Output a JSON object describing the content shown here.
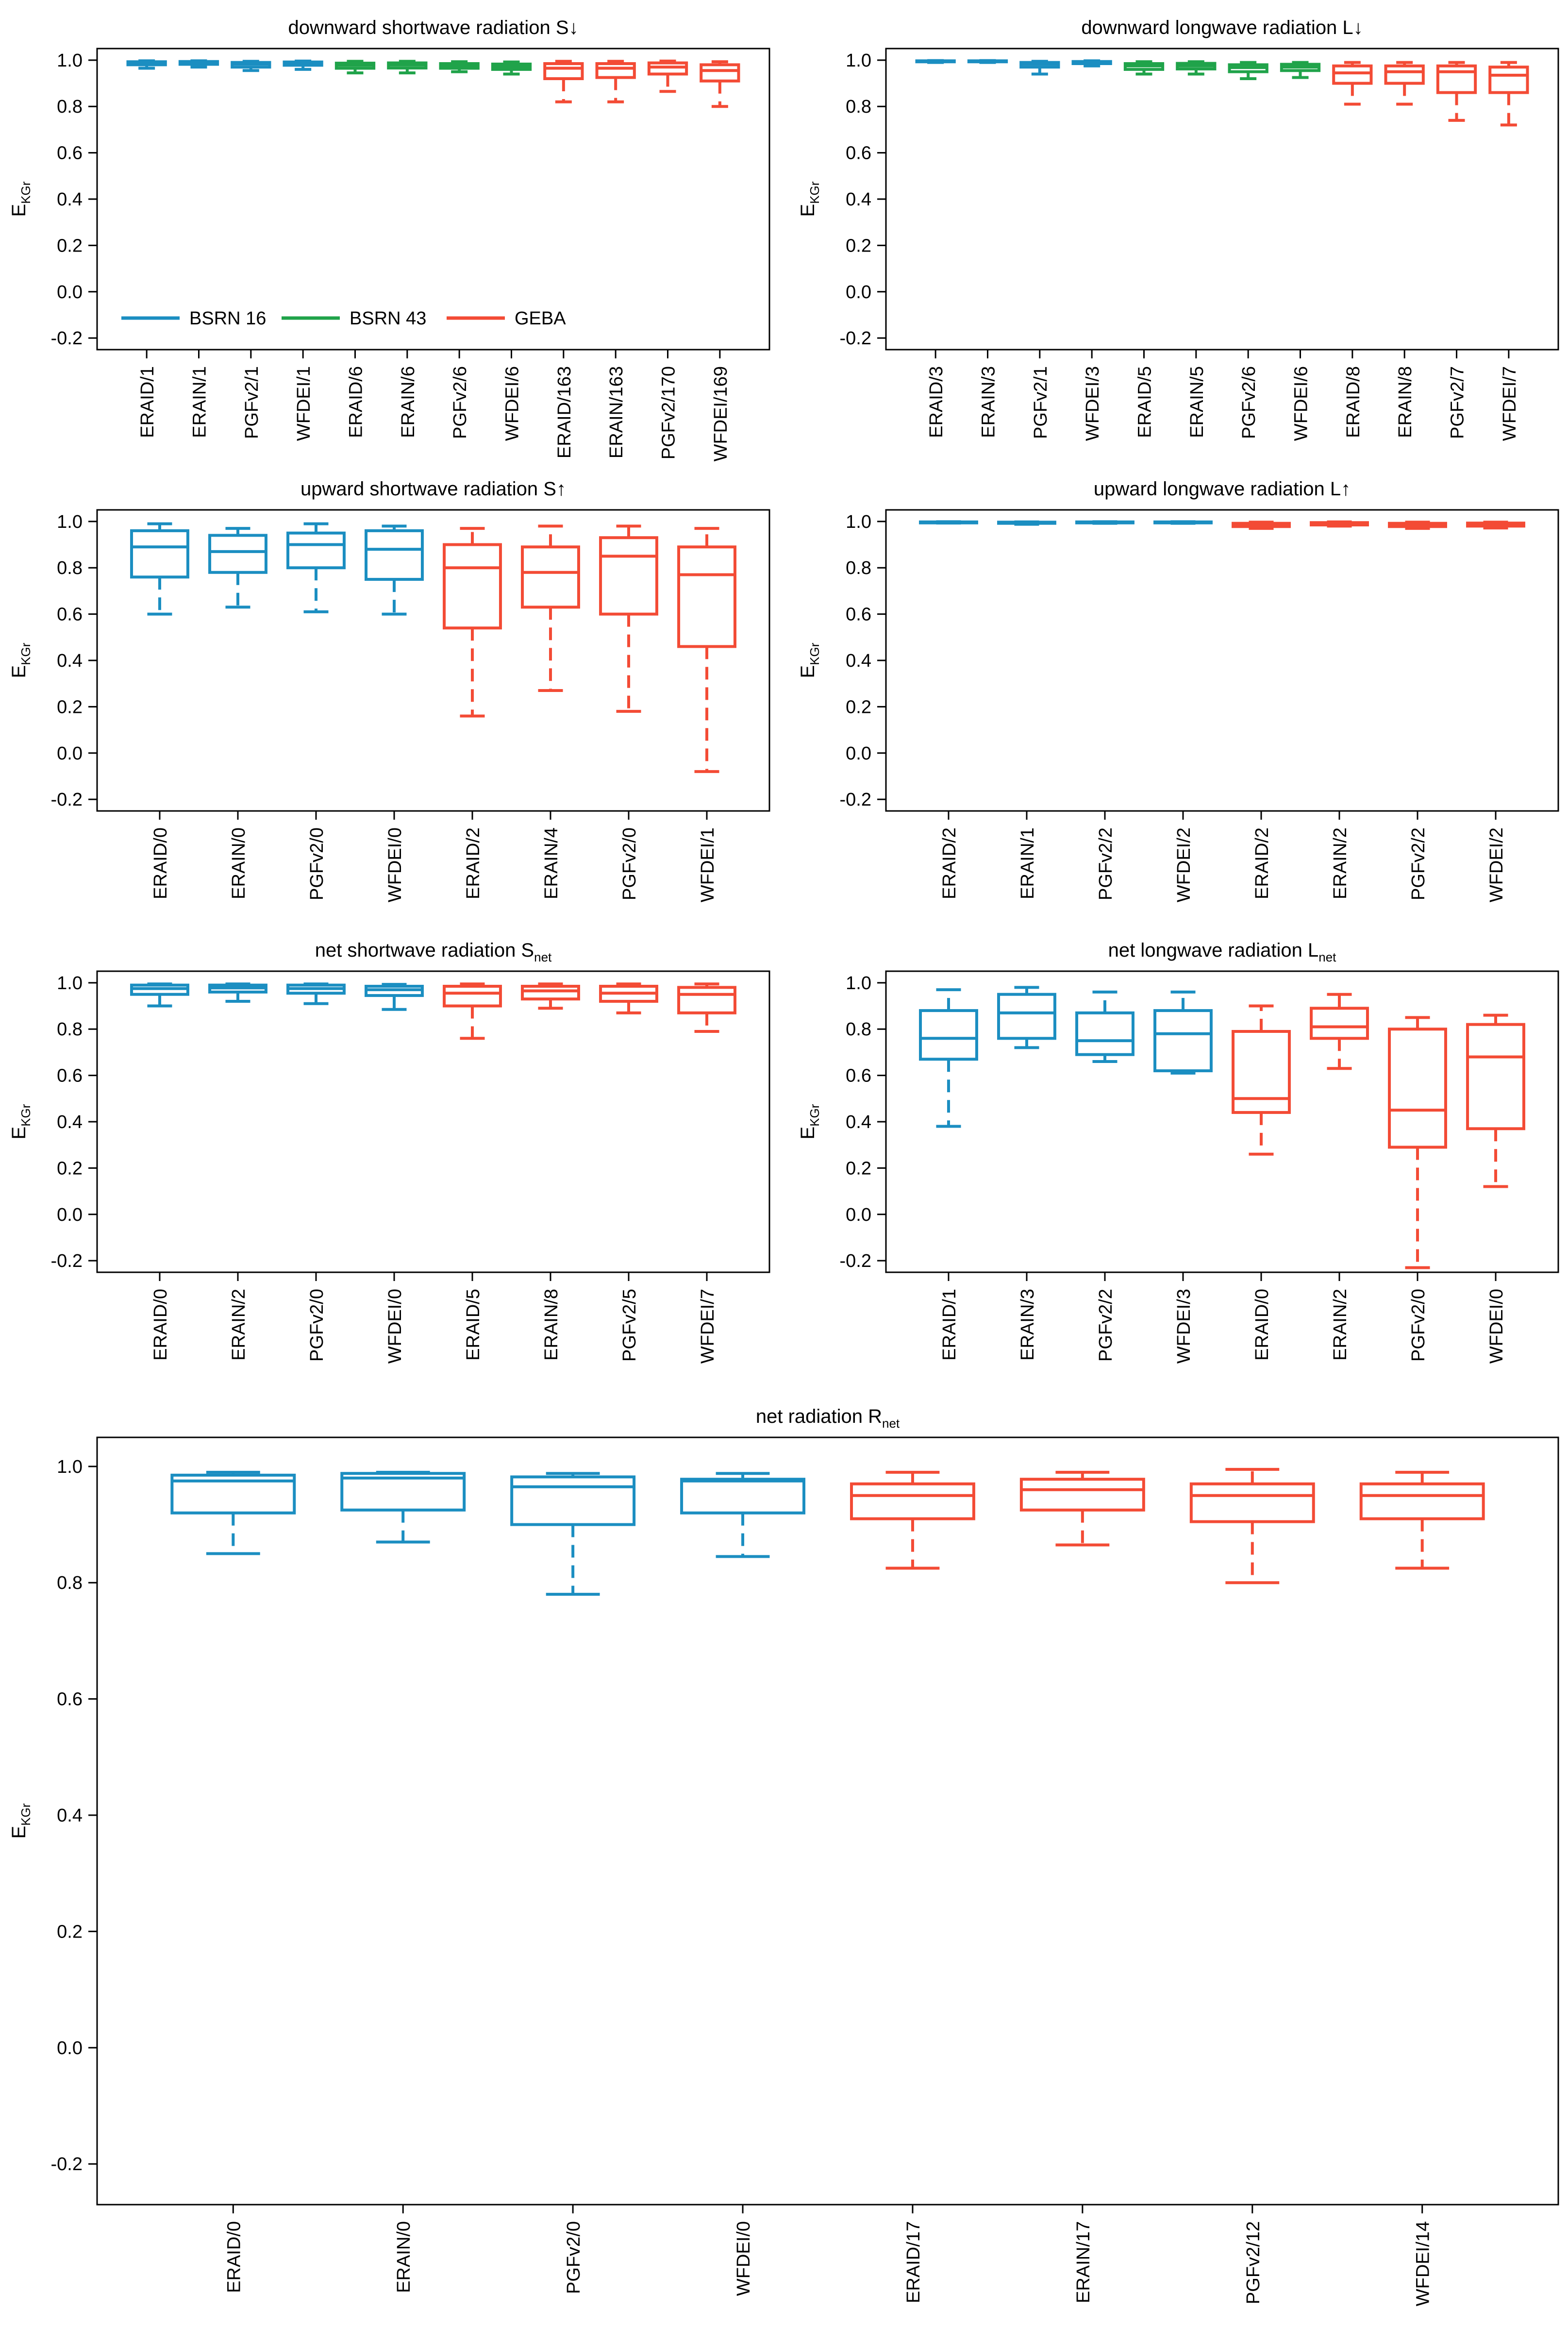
{
  "colors": {
    "blue": "#1b8ec1",
    "green": "#20a34a",
    "red": "#f34b35"
  },
  "ylabel": "E",
  "ylabel_sub": "KGr",
  "legend": [
    {
      "label": "BSRN 16",
      "color": "#1b8ec1"
    },
    {
      "label": "BSRN 43",
      "color": "#20a34a"
    },
    {
      "label": "GEBA",
      "color": "#f34b35"
    }
  ],
  "chart_data": [
    {
      "type": "box",
      "title": "downward shortwave radiation S↓",
      "ylim": [
        -0.25,
        1.05
      ],
      "yticks": [
        "1.0",
        "0.8",
        "0.6",
        "0.4",
        "0.2",
        "0.0",
        "-0.2"
      ],
      "categories": [
        "ERAID/1",
        "ERAIN/1",
        "PGFv2/1",
        "WFDEI/1",
        "ERAID/6",
        "ERAIN/6",
        "PGFv2/6",
        "WFDEI/6",
        "ERAID/163",
        "ERAIN/163",
        "PGFv2/170",
        "WFDEI/169"
      ],
      "groups": [
        "blue",
        "blue",
        "blue",
        "blue",
        "green",
        "green",
        "green",
        "green",
        "red",
        "red",
        "red",
        "red"
      ],
      "boxes": [
        {
          "min": 0.965,
          "q1": 0.98,
          "median": 0.988,
          "q3": 0.993,
          "max": 0.997
        },
        {
          "min": 0.97,
          "q1": 0.982,
          "median": 0.989,
          "q3": 0.994,
          "max": 0.997
        },
        {
          "min": 0.955,
          "q1": 0.97,
          "median": 0.983,
          "q3": 0.99,
          "max": 0.995
        },
        {
          "min": 0.96,
          "q1": 0.978,
          "median": 0.986,
          "q3": 0.992,
          "max": 0.996
        },
        {
          "min": 0.945,
          "q1": 0.965,
          "median": 0.978,
          "q3": 0.987,
          "max": 0.995
        },
        {
          "min": 0.945,
          "q1": 0.966,
          "median": 0.979,
          "q3": 0.988,
          "max": 0.995
        },
        {
          "min": 0.95,
          "q1": 0.965,
          "median": 0.975,
          "q3": 0.985,
          "max": 0.993
        },
        {
          "min": 0.94,
          "q1": 0.96,
          "median": 0.972,
          "q3": 0.983,
          "max": 0.992
        },
        {
          "min": 0.82,
          "q1": 0.92,
          "median": 0.965,
          "q3": 0.985,
          "max": 0.995
        },
        {
          "min": 0.82,
          "q1": 0.925,
          "median": 0.965,
          "q3": 0.985,
          "max": 0.995
        },
        {
          "min": 0.865,
          "q1": 0.94,
          "median": 0.97,
          "q3": 0.988,
          "max": 0.996
        },
        {
          "min": 0.8,
          "q1": 0.91,
          "median": 0.955,
          "q3": 0.98,
          "max": 0.993
        }
      ]
    },
    {
      "type": "box",
      "title": "downward longwave radiation L↓",
      "ylim": [
        -0.25,
        1.05
      ],
      "yticks": [
        "1.0",
        "0.8",
        "0.6",
        "0.4",
        "0.2",
        "0.0",
        "-0.2"
      ],
      "categories": [
        "ERAID/3",
        "ERAIN/3",
        "PGFv2/1",
        "WFDEI/3",
        "ERAID/5",
        "ERAIN/5",
        "PGFv2/6",
        "WFDEI/6",
        "ERAID/8",
        "ERAIN/8",
        "PGFv2/7",
        "WFDEI/7"
      ],
      "groups": [
        "blue",
        "blue",
        "blue",
        "blue",
        "green",
        "green",
        "green",
        "green",
        "red",
        "red",
        "red",
        "red"
      ],
      "boxes": [
        {
          "min": 0.99,
          "q1": 0.993,
          "median": 0.995,
          "q3": 0.997,
          "max": 0.998
        },
        {
          "min": 0.99,
          "q1": 0.993,
          "median": 0.995,
          "q3": 0.997,
          "max": 0.998
        },
        {
          "min": 0.94,
          "q1": 0.97,
          "median": 0.982,
          "q3": 0.99,
          "max": 0.995
        },
        {
          "min": 0.975,
          "q1": 0.985,
          "median": 0.99,
          "q3": 0.994,
          "max": 0.997
        },
        {
          "min": 0.94,
          "q1": 0.96,
          "median": 0.975,
          "q3": 0.985,
          "max": 0.993
        },
        {
          "min": 0.94,
          "q1": 0.962,
          "median": 0.975,
          "q3": 0.986,
          "max": 0.993
        },
        {
          "min": 0.92,
          "q1": 0.95,
          "median": 0.968,
          "q3": 0.98,
          "max": 0.99
        },
        {
          "min": 0.925,
          "q1": 0.955,
          "median": 0.97,
          "q3": 0.982,
          "max": 0.99
        },
        {
          "min": 0.81,
          "q1": 0.9,
          "median": 0.945,
          "q3": 0.975,
          "max": 0.99
        },
        {
          "min": 0.81,
          "q1": 0.9,
          "median": 0.95,
          "q3": 0.975,
          "max": 0.99
        },
        {
          "min": 0.74,
          "q1": 0.86,
          "median": 0.95,
          "q3": 0.975,
          "max": 0.99
        },
        {
          "min": 0.72,
          "q1": 0.86,
          "median": 0.935,
          "q3": 0.97,
          "max": 0.99
        }
      ]
    },
    {
      "type": "box",
      "title": "upward shortwave radiation S↑",
      "ylim": [
        -0.25,
        1.05
      ],
      "yticks": [
        "1.0",
        "0.8",
        "0.6",
        "0.4",
        "0.2",
        "0.0",
        "-0.2"
      ],
      "categories": [
        "ERAID/0",
        "ERAIN/0",
        "PGFv2/0",
        "WFDEI/0",
        "ERAID/2",
        "ERAIN/4",
        "PGFv2/0",
        "WFDEI/1"
      ],
      "groups": [
        "blue",
        "blue",
        "blue",
        "blue",
        "red",
        "red",
        "red",
        "red"
      ],
      "boxes": [
        {
          "min": 0.6,
          "q1": 0.76,
          "median": 0.89,
          "q3": 0.96,
          "max": 0.99
        },
        {
          "min": 0.63,
          "q1": 0.78,
          "median": 0.87,
          "q3": 0.94,
          "max": 0.97
        },
        {
          "min": 0.61,
          "q1": 0.8,
          "median": 0.9,
          "q3": 0.95,
          "max": 0.99
        },
        {
          "min": 0.6,
          "q1": 0.75,
          "median": 0.88,
          "q3": 0.96,
          "max": 0.98
        },
        {
          "min": 0.16,
          "q1": 0.54,
          "median": 0.8,
          "q3": 0.9,
          "max": 0.97
        },
        {
          "min": 0.27,
          "q1": 0.63,
          "median": 0.78,
          "q3": 0.89,
          "max": 0.98
        },
        {
          "min": 0.18,
          "q1": 0.6,
          "median": 0.85,
          "q3": 0.93,
          "max": 0.98
        },
        {
          "min": -0.08,
          "q1": 0.46,
          "median": 0.77,
          "q3": 0.89,
          "max": 0.97
        }
      ]
    },
    {
      "type": "box",
      "title": "upward longwave radiation L↑",
      "ylim": [
        -0.25,
        1.05
      ],
      "yticks": [
        "1.0",
        "0.8",
        "0.6",
        "0.4",
        "0.2",
        "0.0",
        "-0.2"
      ],
      "categories": [
        "ERAID/2",
        "ERAIN/1",
        "PGFv2/2",
        "WFDEI/2",
        "ERAID/2",
        "ERAIN/2",
        "PGFv2/2",
        "WFDEI/2"
      ],
      "groups": [
        "blue",
        "blue",
        "blue",
        "blue",
        "red",
        "red",
        "red",
        "red"
      ],
      "boxes": [
        {
          "min": 0.993,
          "q1": 0.995,
          "median": 0.997,
          "q3": 0.998,
          "max": 0.999
        },
        {
          "min": 0.988,
          "q1": 0.992,
          "median": 0.995,
          "q3": 0.997,
          "max": 0.998
        },
        {
          "min": 0.992,
          "q1": 0.994,
          "median": 0.996,
          "q3": 0.998,
          "max": 0.999
        },
        {
          "min": 0.992,
          "q1": 0.994,
          "median": 0.996,
          "q3": 0.998,
          "max": 0.999
        },
        {
          "min": 0.97,
          "q1": 0.978,
          "median": 0.985,
          "q3": 0.992,
          "max": 0.997
        },
        {
          "min": 0.98,
          "q1": 0.985,
          "median": 0.99,
          "q3": 0.995,
          "max": 0.998
        },
        {
          "min": 0.97,
          "q1": 0.978,
          "median": 0.985,
          "q3": 0.992,
          "max": 0.997
        },
        {
          "min": 0.972,
          "q1": 0.98,
          "median": 0.986,
          "q3": 0.993,
          "max": 0.997
        }
      ]
    },
    {
      "type": "box",
      "title": "net shortwave radiation S",
      "title_sub": "net",
      "ylim": [
        -0.25,
        1.05
      ],
      "yticks": [
        "1.0",
        "0.8",
        "0.6",
        "0.4",
        "0.2",
        "0.0",
        "-0.2"
      ],
      "categories": [
        "ERAID/0",
        "ERAIN/2",
        "PGFv2/0",
        "WFDEI/0",
        "ERAID/5",
        "ERAIN/8",
        "PGFv2/5",
        "WFDEI/7"
      ],
      "groups": [
        "blue",
        "blue",
        "blue",
        "blue",
        "red",
        "red",
        "red",
        "red"
      ],
      "boxes": [
        {
          "min": 0.9,
          "q1": 0.95,
          "median": 0.975,
          "q3": 0.99,
          "max": 0.995
        },
        {
          "min": 0.92,
          "q1": 0.96,
          "median": 0.978,
          "q3": 0.99,
          "max": 0.995
        },
        {
          "min": 0.91,
          "q1": 0.955,
          "median": 0.975,
          "q3": 0.99,
          "max": 0.995
        },
        {
          "min": 0.885,
          "q1": 0.945,
          "median": 0.97,
          "q3": 0.985,
          "max": 0.993
        },
        {
          "min": 0.76,
          "q1": 0.9,
          "median": 0.955,
          "q3": 0.985,
          "max": 0.995
        },
        {
          "min": 0.89,
          "q1": 0.93,
          "median": 0.965,
          "q3": 0.985,
          "max": 0.995
        },
        {
          "min": 0.87,
          "q1": 0.92,
          "median": 0.955,
          "q3": 0.985,
          "max": 0.995
        },
        {
          "min": 0.79,
          "q1": 0.87,
          "median": 0.95,
          "q3": 0.98,
          "max": 0.995
        }
      ]
    },
    {
      "type": "box",
      "title": "net longwave radiation L",
      "title_sub": "net",
      "ylim": [
        -0.25,
        1.05
      ],
      "yticks": [
        "1.0",
        "0.8",
        "0.6",
        "0.4",
        "0.2",
        "0.0",
        "-0.2"
      ],
      "categories": [
        "ERAID/1",
        "ERAIN/3",
        "PGFv2/2",
        "WFDEI/3",
        "ERAID/0",
        "ERAIN/2",
        "PGFv2/0",
        "WFDEI/0"
      ],
      "groups": [
        "blue",
        "blue",
        "blue",
        "blue",
        "red",
        "red",
        "red",
        "red"
      ],
      "boxes": [
        {
          "min": 0.38,
          "q1": 0.67,
          "median": 0.76,
          "q3": 0.88,
          "max": 0.97
        },
        {
          "min": 0.72,
          "q1": 0.76,
          "median": 0.87,
          "q3": 0.95,
          "max": 0.98
        },
        {
          "min": 0.66,
          "q1": 0.69,
          "median": 0.75,
          "q3": 0.87,
          "max": 0.96
        },
        {
          "min": 0.61,
          "q1": 0.62,
          "median": 0.78,
          "q3": 0.88,
          "max": 0.96
        },
        {
          "min": 0.26,
          "q1": 0.44,
          "median": 0.5,
          "q3": 0.79,
          "max": 0.9
        },
        {
          "min": 0.63,
          "q1": 0.76,
          "median": 0.81,
          "q3": 0.89,
          "max": 0.95
        },
        {
          "min": -0.23,
          "q1": 0.29,
          "median": 0.45,
          "q3": 0.8,
          "max": 0.85
        },
        {
          "min": 0.12,
          "q1": 0.37,
          "median": 0.68,
          "q3": 0.82,
          "max": 0.86
        }
      ]
    },
    {
      "type": "box",
      "title": "net radiation R",
      "title_sub": "net",
      "ylim": [
        -0.27,
        1.05
      ],
      "yticks": [
        "1.0",
        "0.8",
        "0.6",
        "0.4",
        "0.2",
        "0.0",
        "-0.2"
      ],
      "categories": [
        "ERAID/0",
        "ERAIN/0",
        "PGFv2/0",
        "WFDEI/0",
        "ERAID/17",
        "ERAIN/17",
        "PGFv2/12",
        "WFDEI/14"
      ],
      "groups": [
        "blue",
        "blue",
        "blue",
        "blue",
        "red",
        "red",
        "red",
        "red"
      ],
      "boxes": [
        {
          "min": 0.85,
          "q1": 0.92,
          "median": 0.975,
          "q3": 0.985,
          "max": 0.99
        },
        {
          "min": 0.87,
          "q1": 0.925,
          "median": 0.98,
          "q3": 0.988,
          "max": 0.99
        },
        {
          "min": 0.78,
          "q1": 0.9,
          "median": 0.965,
          "q3": 0.982,
          "max": 0.988
        },
        {
          "min": 0.845,
          "q1": 0.92,
          "median": 0.975,
          "q3": 0.978,
          "max": 0.988
        },
        {
          "min": 0.825,
          "q1": 0.91,
          "median": 0.95,
          "q3": 0.97,
          "max": 0.99
        },
        {
          "min": 0.865,
          "q1": 0.925,
          "median": 0.96,
          "q3": 0.978,
          "max": 0.99
        },
        {
          "min": 0.8,
          "q1": 0.905,
          "median": 0.95,
          "q3": 0.97,
          "max": 0.995
        },
        {
          "min": 0.825,
          "q1": 0.91,
          "median": 0.95,
          "q3": 0.97,
          "max": 0.99
        }
      ]
    }
  ]
}
